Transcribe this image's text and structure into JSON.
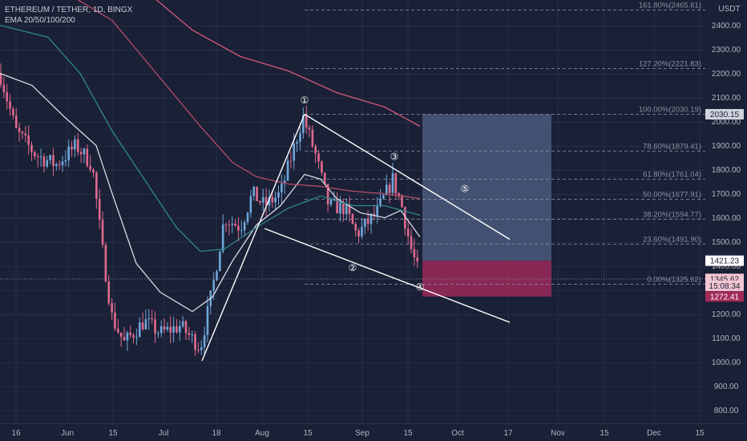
{
  "header": {
    "symbol_line": "ETHEREUM / TETHER, 1D, BINGX",
    "indicator_line": "EMA 20/50/100/200"
  },
  "price_axis": {
    "currency": "USDT",
    "ticks": [
      "2400.00",
      "2300.00",
      "2200.00",
      "2100.00",
      "2000.00",
      "1900.00",
      "1800.00",
      "1700.00",
      "1600.00",
      "1500.00",
      "1400.00",
      "1300.00",
      "1200.00",
      "1100.00",
      "1000.00",
      "900.00",
      "800.00"
    ],
    "labels": [
      {
        "text": "2030.15",
        "price": 2030.15,
        "style": "gray"
      },
      {
        "text": "1421.23",
        "price": 1421.23,
        "style": "white"
      },
      {
        "text": "1345.62",
        "price": 1345.62,
        "style": "pink"
      },
      {
        "text": "15:08:34",
        "price": 1317,
        "style": "pink"
      },
      {
        "text": "1272.41",
        "price": 1272.41,
        "style": "red"
      }
    ]
  },
  "time_axis": {
    "ticks": [
      "16",
      "Jun",
      "15",
      "Jul",
      "18",
      "Aug",
      "15",
      "Sep",
      "15",
      "Oct",
      "17",
      "Nov",
      "15",
      "Dec",
      "15"
    ]
  },
  "fibonacci": [
    {
      "label": "161.80%(2465.61)",
      "price": 2465.61
    },
    {
      "label": "127.20%(2221.83)",
      "price": 2221.83
    },
    {
      "label": "100.00%(2030.19)",
      "price": 2030.19
    },
    {
      "label": "78.60%(1879.41)",
      "price": 1879.41
    },
    {
      "label": "61.80%(1761.04)",
      "price": 1761.04
    },
    {
      "label": "50.00%(1677.91)",
      "price": 1677.91
    },
    {
      "label": "38.20%(1594.77)",
      "price": 1594.77
    },
    {
      "label": "23.60%(1491.90)",
      "price": 1491.9
    },
    {
      "label": "0.00%(1325.62)",
      "price": 1325.62
    }
  ],
  "wave_labels": [
    "①",
    "②",
    "③",
    "④",
    "⑤"
  ],
  "chart_data": {
    "type": "candlestick",
    "title": "ETHEREUM / TETHER, 1D, BINGX",
    "ylabel": "USDT",
    "ylim": [
      760,
      2540
    ],
    "last_price": 1345.62,
    "countdown": "15:08:34",
    "position": {
      "entry": 1421.23,
      "stop": 1272.41,
      "target": 2030.15
    },
    "overlays": [
      "EMA 20",
      "EMA 50",
      "EMA 100",
      "EMA 200"
    ]
  },
  "colors": {
    "background": "#1a2035",
    "bull": "#6fa8dc",
    "bear": "#e06a8f",
    "ema20": "#d9d9e3",
    "ema50": "#2f8a8a",
    "ema100": "#b84d6b",
    "ema200": "#d45a7c",
    "target_zone": "#4a5a7c",
    "stop_zone": "#9c2a5a"
  }
}
